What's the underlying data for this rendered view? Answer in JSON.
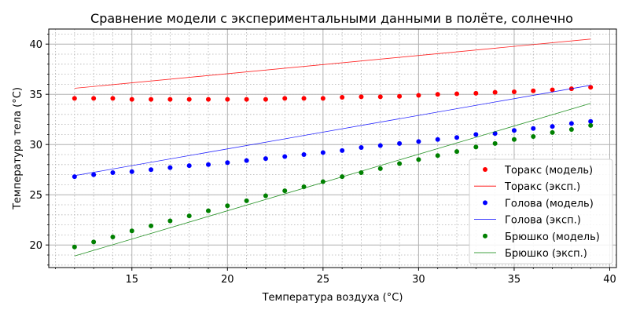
{
  "chart_data": {
    "type": "scatter+line",
    "title": "Сравнение модели с экспериментальными данными в полёте, солнечно",
    "xlabel": "Температура воздуха (°C)",
    "ylabel": "Температура тела (°C)",
    "xlim": [
      10.65,
      40.35
    ],
    "ylim": [
      17.75,
      41.5
    ],
    "xticks": [
      15,
      20,
      25,
      30,
      35,
      40
    ],
    "yticks": [
      20,
      25,
      30,
      35,
      40
    ],
    "grid": {
      "major": true,
      "minor": true,
      "minor_step": 1
    },
    "legend_position": "lower right",
    "x": [
      12,
      13,
      14,
      15,
      16,
      17,
      18,
      19,
      20,
      21,
      22,
      23,
      24,
      25,
      26,
      27,
      28,
      29,
      30,
      31,
      32,
      33,
      34,
      35,
      36,
      37,
      38,
      39
    ],
    "series": [
      {
        "name": "Торакс (модель)",
        "kind": "scatter",
        "color": "#ff0000",
        "values": [
          34.6,
          34.6,
          34.6,
          34.5,
          34.5,
          34.5,
          34.5,
          34.5,
          34.5,
          34.5,
          34.5,
          34.6,
          34.6,
          34.6,
          34.7,
          34.75,
          34.75,
          34.8,
          34.9,
          35.0,
          35.05,
          35.1,
          35.2,
          35.25,
          35.35,
          35.45,
          35.55,
          35.7
        ]
      },
      {
        "name": "Торакс (эксп.)",
        "kind": "line",
        "color": "#ff0000",
        "x": [
          12,
          39
        ],
        "values": [
          35.6,
          40.5
        ]
      },
      {
        "name": "Голова (модель)",
        "kind": "scatter",
        "color": "#0000ff",
        "values": [
          26.8,
          27.0,
          27.2,
          27.3,
          27.5,
          27.7,
          27.9,
          28.0,
          28.2,
          28.4,
          28.6,
          28.8,
          29.0,
          29.2,
          29.4,
          29.7,
          29.9,
          30.1,
          30.3,
          30.5,
          30.7,
          31.0,
          31.1,
          31.4,
          31.6,
          31.8,
          32.1,
          32.3
        ]
      },
      {
        "name": "Голова (эксп.)",
        "kind": "line",
        "color": "#0000ff",
        "x": [
          12,
          39
        ],
        "values": [
          26.9,
          35.9
        ]
      },
      {
        "name": "Брюшко (модель)",
        "kind": "scatter",
        "color": "#008000",
        "values": [
          19.8,
          20.3,
          20.8,
          21.4,
          21.9,
          22.4,
          22.9,
          23.4,
          23.9,
          24.4,
          24.9,
          25.4,
          25.8,
          26.3,
          26.8,
          27.2,
          27.6,
          28.1,
          28.5,
          28.9,
          29.3,
          29.75,
          30.1,
          30.5,
          30.8,
          31.2,
          31.5,
          31.9
        ]
      },
      {
        "name": "Брюшко (эксп.)",
        "kind": "line",
        "color": "#008000",
        "x": [
          12,
          39
        ],
        "values": [
          18.9,
          34.1
        ]
      }
    ]
  }
}
